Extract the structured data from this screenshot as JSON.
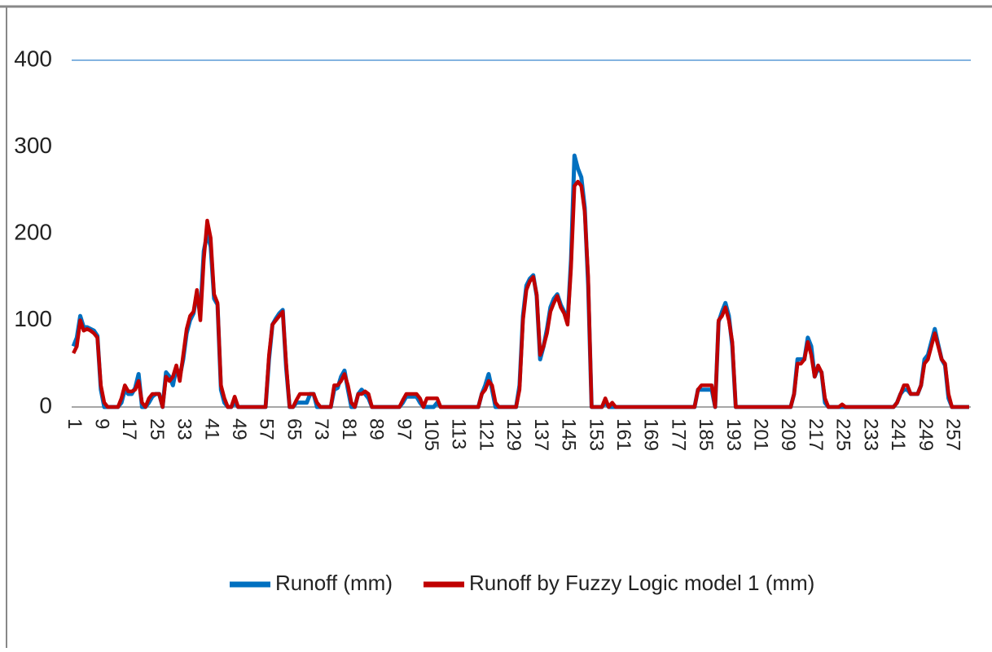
{
  "chart_data": {
    "type": "line",
    "categories": [
      "1",
      null,
      null,
      null,
      null,
      null,
      null,
      null,
      "9",
      null,
      null,
      null,
      null,
      null,
      null,
      null,
      "17",
      null,
      null,
      null,
      null,
      null,
      null,
      null,
      "25",
      null,
      null,
      null,
      null,
      null,
      null,
      null,
      "33",
      null,
      null,
      null,
      null,
      null,
      null,
      null,
      "41",
      null,
      null,
      null,
      null,
      null,
      null,
      null,
      "49",
      null,
      null,
      null,
      null,
      null,
      null,
      null,
      "57",
      null,
      null,
      null,
      null,
      null,
      null,
      null,
      "65",
      null,
      null,
      null,
      null,
      null,
      null,
      null,
      "73",
      null,
      null,
      null,
      null,
      null,
      null,
      null,
      "81",
      null,
      null,
      null,
      null,
      null,
      null,
      null,
      "89",
      null,
      null,
      null,
      null,
      null,
      null,
      null,
      "97",
      null,
      null,
      null,
      null,
      null,
      null,
      null,
      "105",
      null,
      null,
      null,
      null,
      null,
      null,
      null,
      "113",
      null,
      null,
      null,
      null,
      null,
      null,
      null,
      "121",
      null,
      null,
      null,
      null,
      null,
      null,
      null,
      "129",
      null,
      null,
      null,
      null,
      null,
      null,
      null,
      "137",
      null,
      null,
      null,
      null,
      null,
      null,
      null,
      "145",
      null,
      null,
      null,
      null,
      null,
      null,
      null,
      "153",
      null,
      null,
      null,
      null,
      null,
      null,
      null,
      "161",
      null,
      null,
      null,
      null,
      null,
      null,
      null,
      "169",
      null,
      null,
      null,
      null,
      null,
      null,
      null,
      "177",
      null,
      null,
      null,
      null,
      null,
      null,
      null,
      "185",
      null,
      null,
      null,
      null,
      null,
      null,
      null,
      "193",
      null,
      null,
      null,
      null,
      null,
      null,
      null,
      "201",
      null,
      null,
      null,
      null,
      null,
      null,
      null,
      "209",
      null,
      null,
      null,
      null,
      null,
      null,
      null,
      "217",
      null,
      null,
      null,
      null,
      null,
      null,
      null,
      "225",
      null,
      null,
      null,
      null,
      null,
      null,
      null,
      "233",
      null,
      null,
      null,
      null,
      null,
      null,
      null,
      "241",
      null,
      null,
      null,
      null,
      null,
      null,
      null,
      "249",
      null,
      null,
      null,
      null,
      null,
      null,
      null,
      "257",
      null,
      null,
      null,
      null,
      null
    ],
    "series": [
      {
        "name": "Runoff (mm)",
        "color": "#0070c0",
        "values": [
          70,
          80,
          105,
          92,
          92,
          90,
          88,
          82,
          20,
          0,
          0,
          0,
          0,
          0,
          5,
          20,
          15,
          15,
          22,
          38,
          0,
          0,
          5,
          12,
          15,
          15,
          0,
          40,
          35,
          25,
          45,
          35,
          55,
          85,
          100,
          108,
          130,
          110,
          180,
          200,
          185,
          125,
          118,
          20,
          5,
          0,
          0,
          5,
          0,
          0,
          0,
          0,
          0,
          0,
          0,
          0,
          0,
          55,
          95,
          102,
          108,
          112,
          45,
          0,
          0,
          5,
          5,
          5,
          5,
          15,
          15,
          0,
          0,
          0,
          0,
          0,
          20,
          22,
          35,
          42,
          20,
          0,
          0,
          15,
          20,
          15,
          10,
          0,
          0,
          0,
          0,
          0,
          0,
          0,
          0,
          0,
          5,
          12,
          12,
          12,
          12,
          5,
          0,
          0,
          0,
          0,
          5,
          0,
          0,
          0,
          0,
          0,
          0,
          0,
          0,
          0,
          0,
          0,
          0,
          15,
          25,
          38,
          20,
          0,
          0,
          0,
          0,
          0,
          0,
          0,
          25,
          105,
          140,
          148,
          152,
          128,
          55,
          70,
          90,
          115,
          125,
          130,
          118,
          110,
          98,
          170,
          290,
          275,
          265,
          230,
          140,
          0,
          0,
          0,
          0,
          5,
          0,
          0,
          0,
          0,
          0,
          0,
          0,
          0,
          0,
          0,
          0,
          0,
          0,
          0,
          0,
          0,
          0,
          0,
          0,
          0,
          0,
          0,
          0,
          0,
          0,
          0,
          20,
          20,
          20,
          20,
          20,
          0,
          98,
          110,
          120,
          105,
          70,
          0,
          0,
          0,
          0,
          0,
          0,
          0,
          0,
          0,
          0,
          0,
          0,
          0,
          0,
          0,
          0,
          0,
          15,
          55,
          55,
          55,
          80,
          70,
          35,
          45,
          40,
          5,
          0,
          0,
          0,
          0,
          0,
          0,
          0,
          0,
          0,
          0,
          0,
          0,
          0,
          0,
          0,
          0,
          0,
          0,
          0,
          0,
          5,
          15,
          20,
          20,
          15,
          15,
          15,
          25,
          55,
          60,
          75,
          90,
          72,
          55,
          48,
          10,
          0,
          0,
          0,
          0,
          0,
          0
        ]
      },
      {
        "name": "Runoff by Fuzzy Logic model 1 (mm)",
        "color": "#c00000",
        "values": [
          62,
          70,
          100,
          88,
          90,
          88,
          85,
          80,
          25,
          5,
          0,
          0,
          0,
          0,
          10,
          25,
          18,
          18,
          20,
          30,
          5,
          0,
          10,
          15,
          15,
          15,
          0,
          35,
          30,
          35,
          48,
          30,
          60,
          90,
          105,
          110,
          135,
          100,
          170,
          215,
          195,
          130,
          120,
          25,
          10,
          0,
          0,
          12,
          0,
          0,
          0,
          0,
          0,
          0,
          0,
          0,
          0,
          60,
          95,
          100,
          105,
          110,
          50,
          0,
          0,
          8,
          15,
          15,
          15,
          15,
          15,
          5,
          0,
          0,
          0,
          0,
          25,
          25,
          30,
          38,
          25,
          5,
          0,
          15,
          15,
          18,
          15,
          0,
          0,
          0,
          0,
          0,
          0,
          0,
          0,
          0,
          8,
          15,
          15,
          15,
          15,
          10,
          0,
          10,
          10,
          10,
          10,
          0,
          0,
          0,
          0,
          0,
          0,
          0,
          0,
          0,
          0,
          0,
          0,
          15,
          20,
          30,
          25,
          5,
          0,
          0,
          0,
          0,
          0,
          0,
          20,
          100,
          135,
          145,
          150,
          130,
          60,
          70,
          85,
          110,
          120,
          128,
          115,
          108,
          95,
          160,
          255,
          260,
          255,
          225,
          150,
          0,
          0,
          0,
          0,
          10,
          0,
          5,
          0,
          0,
          0,
          0,
          0,
          0,
          0,
          0,
          0,
          0,
          0,
          0,
          0,
          0,
          0,
          0,
          0,
          0,
          0,
          0,
          0,
          0,
          0,
          0,
          20,
          25,
          25,
          25,
          25,
          0,
          100,
          105,
          115,
          100,
          75,
          0,
          0,
          0,
          0,
          0,
          0,
          0,
          0,
          0,
          0,
          0,
          0,
          0,
          0,
          0,
          0,
          0,
          15,
          50,
          50,
          55,
          75,
          60,
          35,
          48,
          40,
          10,
          0,
          0,
          0,
          0,
          3,
          0,
          0,
          0,
          0,
          0,
          0,
          0,
          0,
          0,
          0,
          0,
          0,
          0,
          0,
          0,
          5,
          15,
          25,
          25,
          15,
          15,
          15,
          25,
          50,
          55,
          70,
          85,
          70,
          55,
          50,
          15,
          0,
          0,
          0,
          0,
          0,
          0
        ]
      }
    ],
    "ylim": [
      0,
      400
    ],
    "yticks": [
      0,
      100,
      200,
      300,
      400
    ],
    "grid": false,
    "legend": "bottom"
  }
}
